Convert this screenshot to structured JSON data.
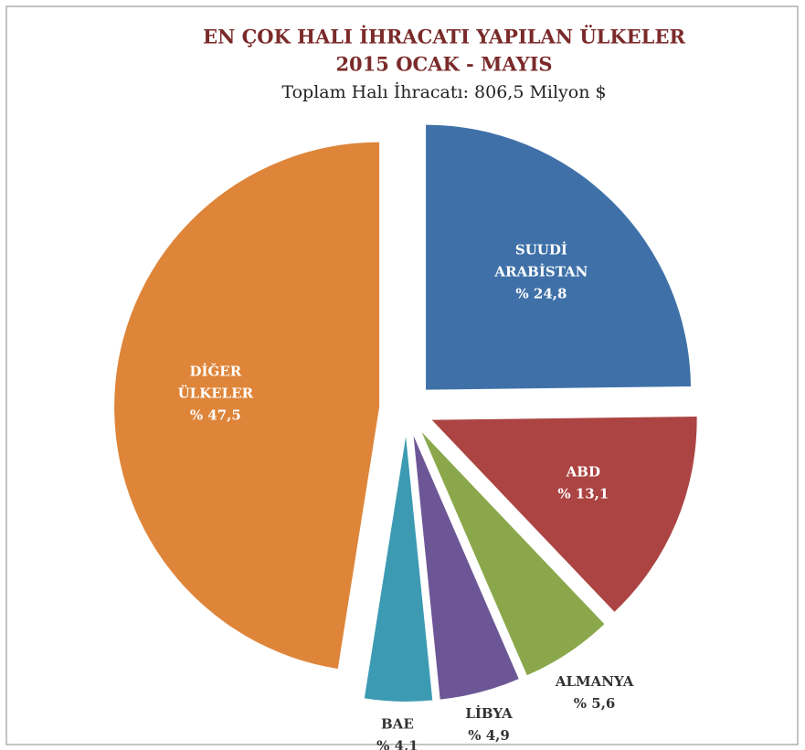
{
  "chart_data": {
    "type": "pie",
    "title": [
      "EN ÇOK HALI İHRACATI YAPILAN ÜLKELER",
      "2015  OCAK - MAYIS"
    ],
    "subtitle": "Toplam Halı İhracatı: 806,5 Milyon $",
    "categories": [
      "SUUDİ ARABİSTAN",
      "ABD",
      "ALMANYA",
      "LİBYA",
      "BAE",
      "DİĞER ÜLKELER"
    ],
    "values": [
      24.8,
      13.1,
      5.6,
      4.9,
      4.1,
      47.5
    ],
    "value_labels": [
      "% 24,8",
      "% 13,1",
      "% 5,6",
      "% 4,9",
      "% 4,1",
      "% 47,5"
    ],
    "colors": [
      "#3f71a8",
      "#ab4442",
      "#8aa84b",
      "#6d5696",
      "#3c9bb2",
      "#de853a"
    ]
  }
}
